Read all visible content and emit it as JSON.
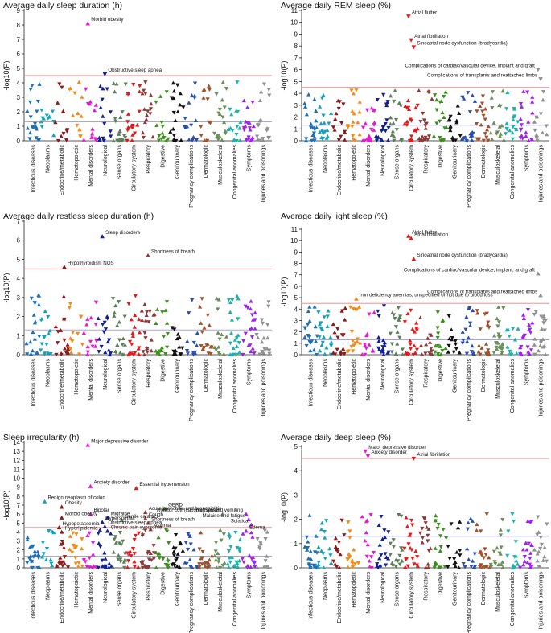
{
  "chart_data": [
    {
      "type": "scatter",
      "title": "Average daily sleep duration (h)",
      "ylabel": "-log10(P)",
      "ylim": [
        0,
        9
      ],
      "yticks": [
        0,
        1,
        2,
        3,
        4,
        5,
        6,
        7,
        8,
        9
      ],
      "thresholds": {
        "bonferroni": 4.5,
        "nominal": 1.3
      },
      "categories": [
        "Infectious diseases",
        "Neoplasms",
        "Endocrine/metabolic",
        "Hematopoietic",
        "Mental disorders",
        "Neurological",
        "Sense organs",
        "Circulatory system",
        "Respiratory",
        "Digestive",
        "Genitourinary",
        "Pregnancy complications",
        "Dermatologic",
        "Musculoskeletal",
        "Congenital anomalies",
        "Symptoms",
        "Injuries and poisonings"
      ],
      "annotations": [
        {
          "label": "Morbid obesity",
          "category": "Mental disorders",
          "value": 8.1,
          "direction": "up"
        },
        {
          "label": "Obstructive sleep apnea",
          "category": "Neurological",
          "value": 4.6,
          "direction": "down"
        }
      ]
    },
    {
      "type": "scatter",
      "title": "Average daily REM sleep (%)",
      "ylabel": "-log10(P)",
      "ylim": [
        0,
        11
      ],
      "yticks": [
        0,
        1,
        2,
        3,
        4,
        5,
        6,
        7,
        8,
        9,
        10,
        11
      ],
      "thresholds": {
        "bonferroni": 4.5,
        "nominal": 1.3
      },
      "categories": [
        "Infectious diseases",
        "Neoplasms",
        "Endocrine/metabolic",
        "Hematopoietic",
        "Mental disorders",
        "Neurological",
        "Sense organs",
        "Circulatory system",
        "Respiratory",
        "Digestive",
        "Genitourinary",
        "Pregnancy complications",
        "Dermatologic",
        "Musculoskeletal",
        "Congenital anomalies",
        "Symptoms",
        "Injuries and poisonings"
      ],
      "annotations": [
        {
          "label": "Atrial flutter",
          "category": "Circulatory system",
          "value": 10.5,
          "direction": "down"
        },
        {
          "label": "Atrial fibrillation",
          "category": "Circulatory system",
          "value": 8.5,
          "direction": "down"
        },
        {
          "label": "Sinoatrial node dysfunction (bradycardia)",
          "category": "Circulatory system",
          "value": 7.9,
          "direction": "down"
        },
        {
          "label": "Complications of cardiac/vascular device, implant and graft",
          "category": "Injuries and poisonings",
          "value": 6.0,
          "direction": "down"
        },
        {
          "label": "Complications of transplants and reattached limbs",
          "category": "Injuries and poisonings",
          "value": 5.2,
          "direction": "down"
        }
      ]
    },
    {
      "type": "scatter",
      "title": "Average daily restless sleep duration (h)",
      "ylabel": "-log10(P)",
      "ylim": [
        0,
        7
      ],
      "yticks": [
        0,
        1,
        2,
        3,
        4,
        5,
        6,
        7
      ],
      "thresholds": {
        "bonferroni": 4.5,
        "nominal": 1.3
      },
      "categories": [
        "Infectious diseases",
        "Neoplasms",
        "Endocrine/metabolic",
        "Hematopoietic",
        "Mental disorders",
        "Neurological",
        "Sense organs",
        "Circulatory system",
        "Respiratory",
        "Digestive",
        "Genitourinary",
        "Pregnancy complications",
        "Dermatologic",
        "Musculoskeletal",
        "Congenital anomalies",
        "Symptoms",
        "Injuries and poisonings"
      ],
      "annotations": [
        {
          "label": "Sleep disorders",
          "category": "Neurological",
          "value": 6.2,
          "direction": "up"
        },
        {
          "label": "Shortness of breath",
          "category": "Respiratory",
          "value": 5.2,
          "direction": "up"
        },
        {
          "label": "Hypothyroidism NOS",
          "category": "Endocrine/metabolic",
          "value": 4.6,
          "direction": "up"
        }
      ]
    },
    {
      "type": "scatter",
      "title": "Average daily light sleep (%)",
      "ylabel": "-log10(P)",
      "ylim": [
        0,
        11
      ],
      "yticks": [
        0,
        1,
        2,
        3,
        4,
        5,
        6,
        7,
        8,
        9,
        10,
        11
      ],
      "thresholds": {
        "bonferroni": 4.5,
        "nominal": 1.3
      },
      "categories": [
        "Infectious diseases",
        "Neoplasms",
        "Endocrine/metabolic",
        "Hematopoietic",
        "Mental disorders",
        "Neurological",
        "Sense organs",
        "Circulatory system",
        "Respiratory",
        "Digestive",
        "Genitourinary",
        "Pregnancy complications",
        "Dermatologic",
        "Musculoskeletal",
        "Congenital anomalies",
        "Symptoms",
        "Injuries and poisonings"
      ],
      "annotations": [
        {
          "label": "Atrial flutter",
          "category": "Circulatory system",
          "value": 10.4,
          "direction": "up"
        },
        {
          "label": "Atrial fibrillation",
          "category": "Circulatory system",
          "value": 10.2,
          "direction": "up"
        },
        {
          "label": "Sinoatrial node dysfunction (bradycardia)",
          "category": "Circulatory system",
          "value": 8.4,
          "direction": "up"
        },
        {
          "label": "Complications of cardiac/vascular device, implant, and graft",
          "category": "Injuries and poisonings",
          "value": 7.1,
          "direction": "up"
        },
        {
          "label": "Complications of transplants and reattached limbs",
          "category": "Injuries and poisonings",
          "value": 5.2,
          "direction": "up"
        },
        {
          "label": "Iron deficiency anemias, unspecified or not due to blood loss",
          "category": "Hematopoietic",
          "value": 4.9,
          "direction": "up"
        }
      ]
    },
    {
      "type": "scatter",
      "title": "Sleep irregularity (h)",
      "ylabel": "-log10(P)",
      "ylim": [
        0,
        14
      ],
      "yticks": [
        0,
        1,
        2,
        3,
        4,
        5,
        6,
        7,
        8,
        9,
        10,
        11,
        12,
        13,
        14
      ],
      "thresholds": {
        "bonferroni": 4.5,
        "nominal": 1.3
      },
      "categories": [
        "Infectious diseases",
        "Neoplasms",
        "Endocrine/metabolic",
        "Hematopoietic",
        "Mental disorders",
        "Neurological",
        "Sense organs",
        "Circulatory system",
        "Respiratory",
        "Digestive",
        "Genitourinary",
        "Pregnancy complications",
        "Dermatologic",
        "Musculoskeletal",
        "Congenital anomalies",
        "Symptoms",
        "Injuries and poisonings"
      ],
      "annotations": [
        {
          "label": "Major depressive disorder",
          "category": "Mental disorders",
          "value": 13.7,
          "direction": "up"
        },
        {
          "label": "Anxiety disorder",
          "category": "Mental disorders",
          "value": 9.1,
          "direction": "up"
        },
        {
          "label": "Essential hypertension",
          "category": "Circulatory system",
          "value": 8.9,
          "direction": "up"
        },
        {
          "label": "Benign neoplasm of colon",
          "category": "Neoplasms",
          "value": 7.4,
          "direction": "up"
        },
        {
          "label": "Obesity",
          "category": "Endocrine/metabolic",
          "value": 6.8,
          "direction": "up"
        },
        {
          "label": "GERD",
          "category": "Digestive",
          "value": 6.6,
          "direction": "up"
        },
        {
          "label": "Acute bronchitis and bronchiolitis",
          "category": "Respiratory",
          "value": 6.2,
          "direction": "up"
        },
        {
          "label": "Bipolar",
          "category": "Mental disorders",
          "value": 6.0,
          "direction": "up"
        },
        {
          "label": "Rotator cuff (capsule) sprain",
          "category": "Musculoskeletal",
          "value": 6.0,
          "direction": "up"
        },
        {
          "label": "Nausea and vomiting",
          "category": "Symptoms",
          "value": 6.0,
          "direction": "up"
        },
        {
          "label": "Morbid obesity",
          "category": "Endocrine/metabolic",
          "value": 5.6,
          "direction": "up"
        },
        {
          "label": "Migraine",
          "category": "Neurological",
          "value": 5.6,
          "direction": "up"
        },
        {
          "label": "Cough",
          "category": "Respiratory",
          "value": 5.5,
          "direction": "up"
        },
        {
          "label": "Malaise and fatigue",
          "category": "Symptoms",
          "value": 5.4,
          "direction": "up"
        },
        {
          "label": "Senile cataract",
          "category": "Sense organs",
          "value": 5.3,
          "direction": "up"
        },
        {
          "label": "Hypersomnia",
          "category": "Neurological",
          "value": 5.1,
          "direction": "up"
        },
        {
          "label": "Shortness of breath",
          "category": "Respiratory",
          "value": 5.0,
          "direction": "up"
        },
        {
          "label": "Sciatica",
          "category": "Symptoms",
          "value": 4.8,
          "direction": "up"
        },
        {
          "label": "Hypopotassemia",
          "category": "Endocrine/metabolic",
          "value": 4.5,
          "direction": "up"
        },
        {
          "label": "Obstructive sleep apnea",
          "category": "Neurological",
          "value": 4.6,
          "direction": "up"
        },
        {
          "label": "Asthma",
          "category": "Respiratory",
          "value": 4.3,
          "direction": "up"
        },
        {
          "label": "Edema",
          "category": "Symptoms",
          "value": 4.1,
          "direction": "up"
        },
        {
          "label": "Hyperlipidemia",
          "category": "Endocrine/metabolic",
          "value": 4.0,
          "direction": "up"
        },
        {
          "label": "Chronic pain syndrome",
          "category": "Neurological",
          "value": 4.1,
          "direction": "up"
        }
      ]
    },
    {
      "type": "scatter",
      "title": "Average daily deep sleep (%)",
      "ylabel": "-log10(P)",
      "ylim": [
        0,
        5
      ],
      "yticks": [
        0,
        1,
        2,
        3,
        4,
        5
      ],
      "thresholds": {
        "bonferroni": 4.5,
        "nominal": 1.3
      },
      "categories": [
        "Infectious diseases",
        "Neoplasms",
        "Endocrine/metabolic",
        "Hematopoietic",
        "Mental disorders",
        "Neurological",
        "Sense organs",
        "Circulatory system",
        "Respiratory",
        "Digestive",
        "Genitourinary",
        "Pregnancy complications",
        "Dermatologic",
        "Musculoskeletal",
        "Congenital anomalies",
        "Symptoms",
        "Injuries and poisonings"
      ],
      "annotations": [
        {
          "label": "Major depressive disorder",
          "category": "Mental disorders",
          "value": 4.8,
          "direction": "down"
        },
        {
          "label": "Anxiety disorder",
          "category": "Mental disorders",
          "value": 4.6,
          "direction": "down"
        },
        {
          "label": "Atrial fibrillation",
          "category": "Circulatory system",
          "value": 4.5,
          "direction": "down"
        }
      ]
    }
  ],
  "colors": {
    "Infectious diseases": "#1f6fb4",
    "Neoplasms": "#17a2b8",
    "Endocrine/metabolic": "#8b1a1a",
    "Hematopoietic": "#f28c18",
    "Mental disorders": "#e41ad1",
    "Neurological": "#13208f",
    "Sense organs": "#5b7f5b",
    "Circulatory system": "#e31a1c",
    "Respiratory": "#8c3b3b",
    "Digestive": "#3f8f1f",
    "Genitourinary": "#111111",
    "Pregnancy complications": "#2a4fa8",
    "Dermatologic": "#a0522d",
    "Musculoskeletal": "#6b8e5a",
    "Congenital anomalies": "#20b2aa",
    "Symptoms": "#a020f0",
    "Injuries and poisonings": "#909090",
    "bonferroni_line": "#f08080",
    "nominal_line": "#9a9ad8"
  }
}
